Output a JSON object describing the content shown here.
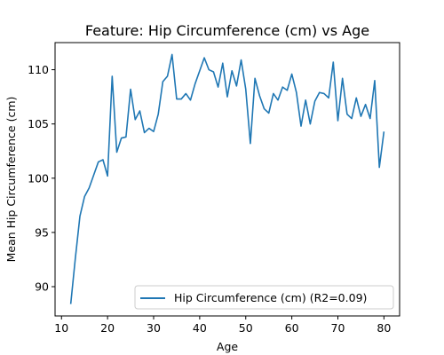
{
  "chart_data": {
    "type": "line",
    "title": "Feature: Hip Circumference (cm) vs Age",
    "xlabel": "Age",
    "ylabel": "Mean Hip Circumference (cm)",
    "xlim": [
      8.6,
      83.4
    ],
    "ylim": [
      87.3,
      112.5
    ],
    "xticks": [
      10,
      20,
      30,
      40,
      50,
      60,
      70,
      80
    ],
    "yticks": [
      90,
      95,
      100,
      105,
      110
    ],
    "grid": false,
    "legend_position": "lower-right",
    "series": [
      {
        "name": "Hip Circumference (cm) (R2=0.09)",
        "color": "#1f77b4",
        "x": [
          12,
          13,
          14,
          15,
          16,
          17,
          18,
          19,
          20,
          21,
          22,
          23,
          24,
          25,
          26,
          27,
          28,
          29,
          30,
          31,
          32,
          33,
          34,
          35,
          36,
          37,
          38,
          39,
          40,
          41,
          42,
          43,
          44,
          45,
          46,
          47,
          48,
          49,
          50,
          51,
          52,
          53,
          54,
          55,
          56,
          57,
          58,
          59,
          60,
          61,
          62,
          63,
          64,
          65,
          66,
          67,
          68,
          69,
          70,
          71,
          72,
          73,
          74,
          75,
          76,
          77,
          78,
          79,
          80
        ],
        "y": [
          88.4,
          92.6,
          96.5,
          98.3,
          99.1,
          100.3,
          101.5,
          101.7,
          100.2,
          109.4,
          102.4,
          103.7,
          103.8,
          108.2,
          105.4,
          106.2,
          104.2,
          104.6,
          104.3,
          105.9,
          108.9,
          109.4,
          111.4,
          107.3,
          107.3,
          107.8,
          107.2,
          108.7,
          109.9,
          111.1,
          110.0,
          109.8,
          108.4,
          110.6,
          107.5,
          109.9,
          108.5,
          110.9,
          108.2,
          103.2,
          109.2,
          107.6,
          106.4,
          106.0,
          107.8,
          107.2,
          108.4,
          108.1,
          109.6,
          107.9,
          104.8,
          107.2,
          105.0,
          107.1,
          107.9,
          107.8,
          107.4,
          110.7,
          105.3,
          109.2,
          105.9,
          105.5,
          107.4,
          105.7,
          106.8,
          105.5,
          109.0,
          101.0,
          104.3
        ]
      }
    ]
  }
}
